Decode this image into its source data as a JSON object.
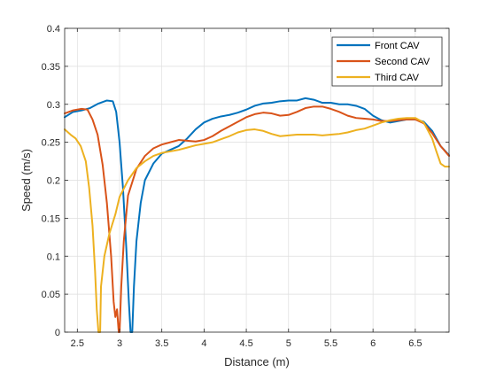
{
  "chart_data": {
    "type": "line",
    "xlabel": "Distance (m)",
    "ylabel": "Speed (m/s)",
    "xlim": [
      2.35,
      6.9
    ],
    "ylim": [
      0,
      0.4
    ],
    "xticks": [
      2.5,
      3,
      3.5,
      4,
      4.5,
      5,
      5.5,
      6,
      6.5
    ],
    "xtick_labels": [
      "2.5",
      "3",
      "3.5",
      "4",
      "4.5",
      "5",
      "5.5",
      "6",
      "6.5"
    ],
    "yticks": [
      0,
      0.05,
      0.1,
      0.15,
      0.2,
      0.25,
      0.3,
      0.35,
      0.4
    ],
    "ytick_labels": [
      "0",
      "0.05",
      "0.1",
      "0.15",
      "0.2",
      "0.25",
      "0.3",
      "0.35",
      "0.4"
    ],
    "grid": true,
    "legend_position": "top-right",
    "series": [
      {
        "name": "Front CAV",
        "color": "#0072BD",
        "points": [
          [
            2.35,
            0.283
          ],
          [
            2.45,
            0.29
          ],
          [
            2.55,
            0.292
          ],
          [
            2.65,
            0.295
          ],
          [
            2.75,
            0.301
          ],
          [
            2.85,
            0.305
          ],
          [
            2.92,
            0.304
          ],
          [
            2.96,
            0.29
          ],
          [
            3.0,
            0.25
          ],
          [
            3.04,
            0.19
          ],
          [
            3.08,
            0.11
          ],
          [
            3.11,
            0.04
          ],
          [
            3.13,
            0.0
          ],
          [
            3.15,
            0.0
          ],
          [
            3.17,
            0.06
          ],
          [
            3.2,
            0.12
          ],
          [
            3.25,
            0.17
          ],
          [
            3.3,
            0.2
          ],
          [
            3.4,
            0.222
          ],
          [
            3.5,
            0.235
          ],
          [
            3.6,
            0.24
          ],
          [
            3.7,
            0.245
          ],
          [
            3.8,
            0.255
          ],
          [
            3.9,
            0.267
          ],
          [
            4.0,
            0.276
          ],
          [
            4.1,
            0.281
          ],
          [
            4.2,
            0.284
          ],
          [
            4.3,
            0.286
          ],
          [
            4.4,
            0.289
          ],
          [
            4.5,
            0.293
          ],
          [
            4.6,
            0.298
          ],
          [
            4.7,
            0.301
          ],
          [
            4.8,
            0.302
          ],
          [
            4.9,
            0.304
          ],
          [
            5.0,
            0.305
          ],
          [
            5.1,
            0.305
          ],
          [
            5.2,
            0.308
          ],
          [
            5.3,
            0.306
          ],
          [
            5.4,
            0.302
          ],
          [
            5.5,
            0.302
          ],
          [
            5.6,
            0.3
          ],
          [
            5.7,
            0.3
          ],
          [
            5.8,
            0.298
          ],
          [
            5.9,
            0.294
          ],
          [
            6.0,
            0.285
          ],
          [
            6.1,
            0.279
          ],
          [
            6.2,
            0.276
          ],
          [
            6.3,
            0.278
          ],
          [
            6.4,
            0.28
          ],
          [
            6.5,
            0.28
          ],
          [
            6.6,
            0.277
          ],
          [
            6.7,
            0.265
          ],
          [
            6.8,
            0.245
          ],
          [
            6.9,
            0.233
          ]
        ]
      },
      {
        "name": "Second CAV",
        "color": "#D95319",
        "points": [
          [
            2.35,
            0.288
          ],
          [
            2.45,
            0.292
          ],
          [
            2.55,
            0.294
          ],
          [
            2.62,
            0.293
          ],
          [
            2.68,
            0.28
          ],
          [
            2.74,
            0.26
          ],
          [
            2.8,
            0.22
          ],
          [
            2.85,
            0.17
          ],
          [
            2.9,
            0.1
          ],
          [
            2.93,
            0.04
          ],
          [
            2.95,
            0.02
          ],
          [
            2.97,
            0.03
          ],
          [
            2.99,
            0.0
          ],
          [
            3.0,
            0.0
          ],
          [
            3.02,
            0.06
          ],
          [
            3.05,
            0.12
          ],
          [
            3.1,
            0.18
          ],
          [
            3.2,
            0.215
          ],
          [
            3.3,
            0.232
          ],
          [
            3.4,
            0.242
          ],
          [
            3.5,
            0.247
          ],
          [
            3.6,
            0.25
          ],
          [
            3.7,
            0.253
          ],
          [
            3.8,
            0.252
          ],
          [
            3.9,
            0.251
          ],
          [
            4.0,
            0.253
          ],
          [
            4.1,
            0.258
          ],
          [
            4.2,
            0.265
          ],
          [
            4.3,
            0.271
          ],
          [
            4.4,
            0.277
          ],
          [
            4.5,
            0.283
          ],
          [
            4.6,
            0.287
          ],
          [
            4.7,
            0.289
          ],
          [
            4.8,
            0.288
          ],
          [
            4.9,
            0.285
          ],
          [
            5.0,
            0.286
          ],
          [
            5.1,
            0.29
          ],
          [
            5.2,
            0.295
          ],
          [
            5.3,
            0.297
          ],
          [
            5.4,
            0.297
          ],
          [
            5.5,
            0.294
          ],
          [
            5.6,
            0.29
          ],
          [
            5.7,
            0.285
          ],
          [
            5.8,
            0.282
          ],
          [
            5.9,
            0.281
          ],
          [
            6.0,
            0.28
          ],
          [
            6.1,
            0.278
          ],
          [
            6.2,
            0.278
          ],
          [
            6.3,
            0.279
          ],
          [
            6.4,
            0.28
          ],
          [
            6.5,
            0.28
          ],
          [
            6.6,
            0.275
          ],
          [
            6.7,
            0.262
          ],
          [
            6.8,
            0.245
          ],
          [
            6.9,
            0.232
          ]
        ]
      },
      {
        "name": "Third CAV",
        "color": "#EDB120",
        "points": [
          [
            2.35,
            0.267
          ],
          [
            2.42,
            0.26
          ],
          [
            2.48,
            0.255
          ],
          [
            2.54,
            0.245
          ],
          [
            2.6,
            0.225
          ],
          [
            2.64,
            0.19
          ],
          [
            2.68,
            0.14
          ],
          [
            2.71,
            0.08
          ],
          [
            2.73,
            0.03
          ],
          [
            2.75,
            0.0
          ],
          [
            2.77,
            0.0
          ],
          [
            2.78,
            0.06
          ],
          [
            2.82,
            0.1
          ],
          [
            2.88,
            0.13
          ],
          [
            2.95,
            0.155
          ],
          [
            3.0,
            0.178
          ],
          [
            3.1,
            0.2
          ],
          [
            3.2,
            0.216
          ],
          [
            3.3,
            0.225
          ],
          [
            3.4,
            0.232
          ],
          [
            3.5,
            0.236
          ],
          [
            3.6,
            0.238
          ],
          [
            3.7,
            0.24
          ],
          [
            3.8,
            0.243
          ],
          [
            3.9,
            0.246
          ],
          [
            4.0,
            0.248
          ],
          [
            4.1,
            0.25
          ],
          [
            4.2,
            0.254
          ],
          [
            4.3,
            0.258
          ],
          [
            4.4,
            0.263
          ],
          [
            4.5,
            0.266
          ],
          [
            4.6,
            0.267
          ],
          [
            4.7,
            0.265
          ],
          [
            4.8,
            0.261
          ],
          [
            4.9,
            0.258
          ],
          [
            5.0,
            0.259
          ],
          [
            5.1,
            0.26
          ],
          [
            5.2,
            0.26
          ],
          [
            5.3,
            0.26
          ],
          [
            5.4,
            0.259
          ],
          [
            5.5,
            0.26
          ],
          [
            5.6,
            0.261
          ],
          [
            5.7,
            0.263
          ],
          [
            5.8,
            0.266
          ],
          [
            5.9,
            0.268
          ],
          [
            6.0,
            0.272
          ],
          [
            6.1,
            0.276
          ],
          [
            6.2,
            0.279
          ],
          [
            6.3,
            0.281
          ],
          [
            6.4,
            0.282
          ],
          [
            6.5,
            0.282
          ],
          [
            6.6,
            0.276
          ],
          [
            6.7,
            0.255
          ],
          [
            6.75,
            0.238
          ],
          [
            6.8,
            0.222
          ],
          [
            6.85,
            0.218
          ],
          [
            6.9,
            0.218
          ]
        ]
      }
    ]
  }
}
